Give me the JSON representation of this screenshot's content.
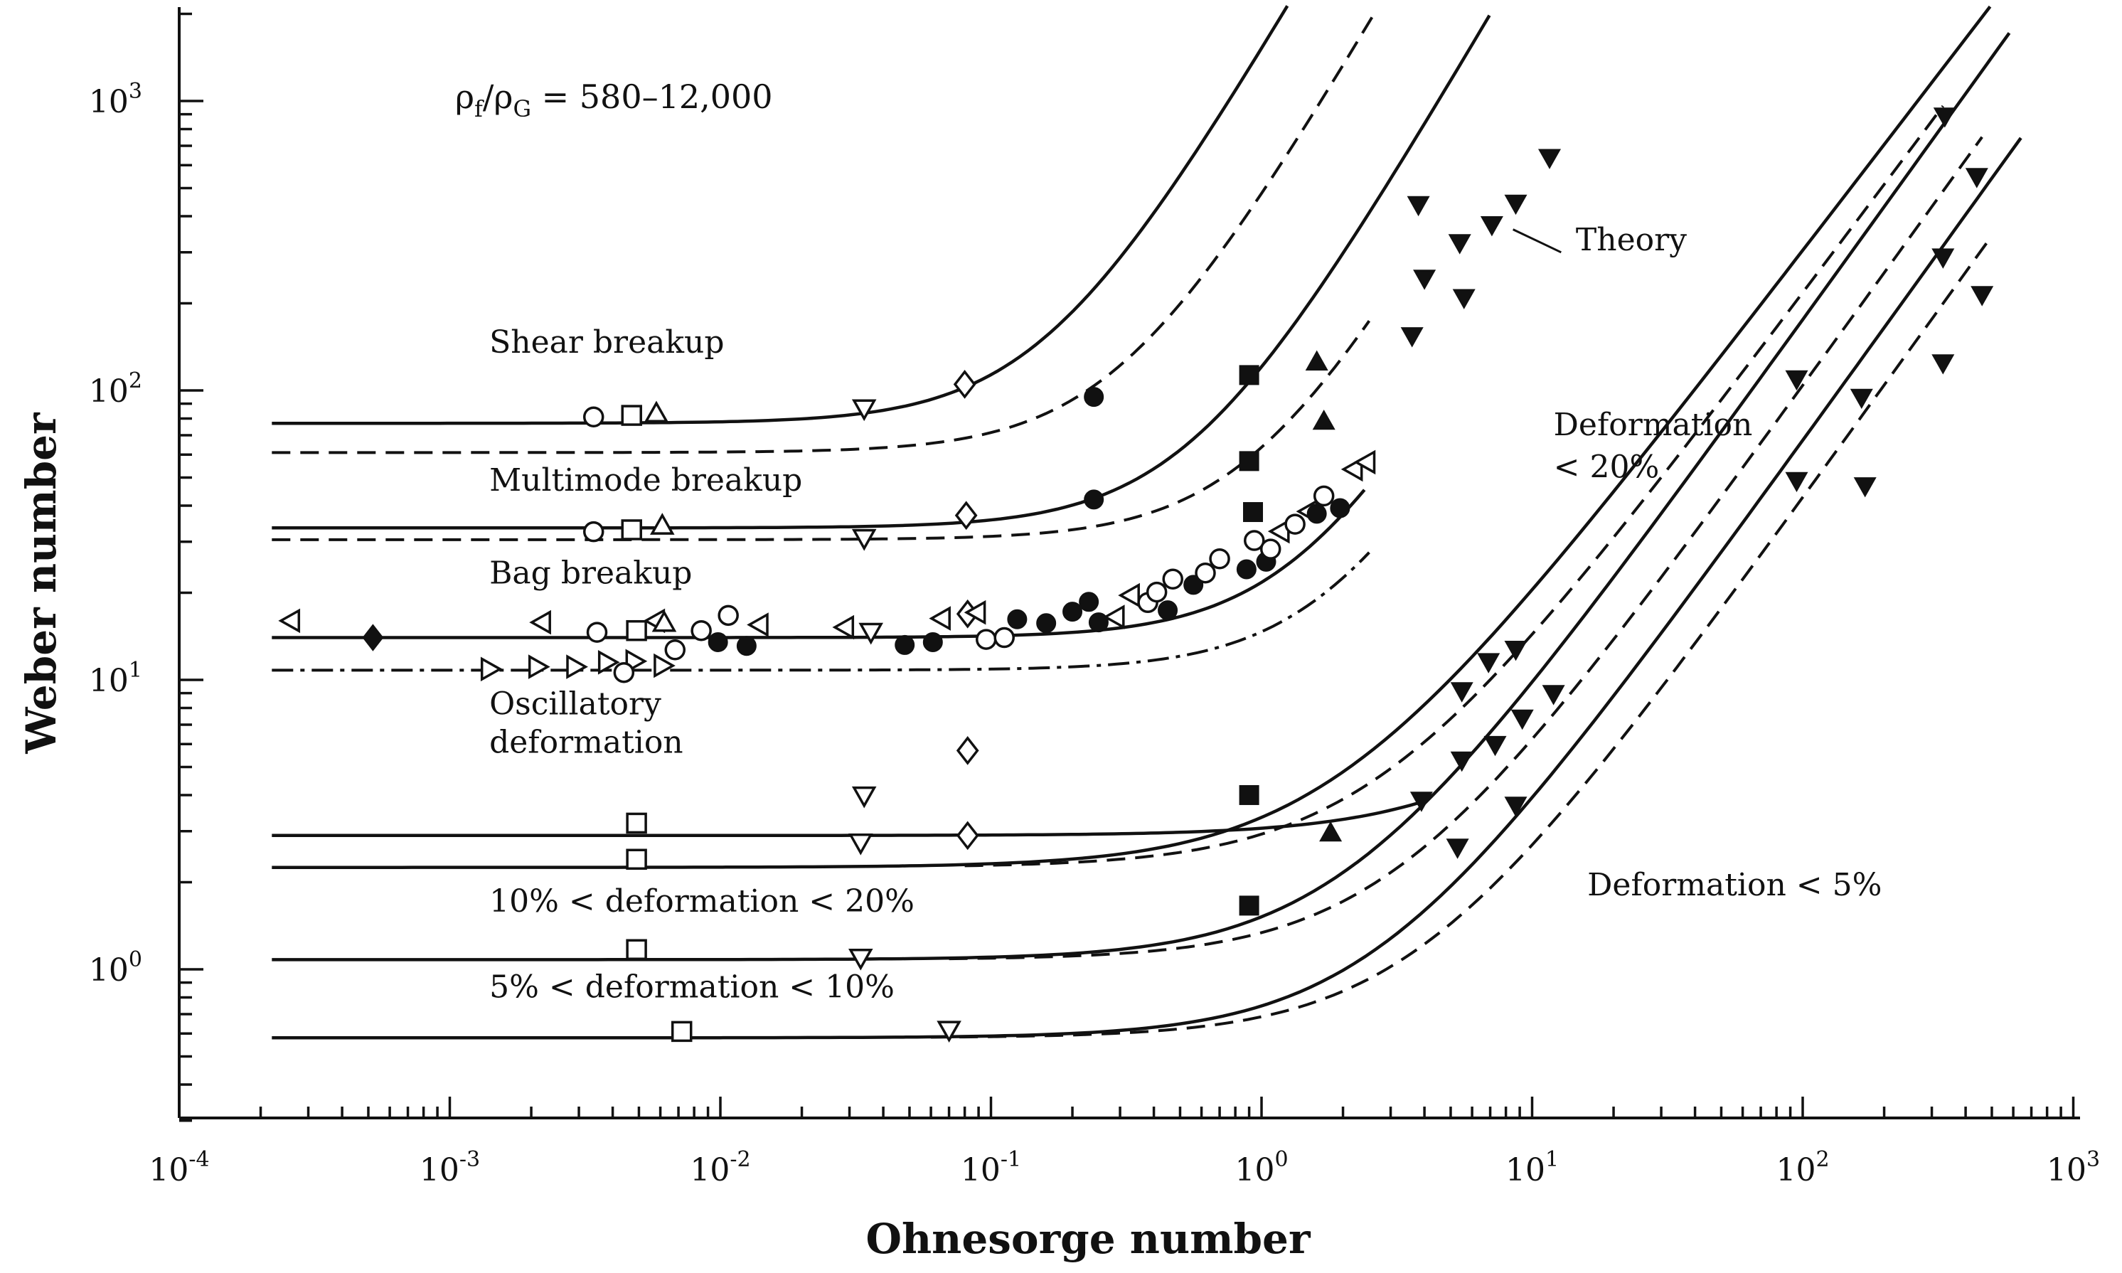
{
  "chart_data": {
    "type": "scatter",
    "title": "",
    "xlabel": "Ohnesorge number",
    "ylabel": "Weber number",
    "xscale": "log",
    "yscale": "log",
    "xlim": [
      0.0001,
      1000
    ],
    "ylim": [
      0.3,
      2000
    ],
    "x_ticks": [
      {
        "base": "10",
        "exp": "-4",
        "value": 0.0001
      },
      {
        "base": "10",
        "exp": "-3",
        "value": 0.001
      },
      {
        "base": "10",
        "exp": "-2",
        "value": 0.01
      },
      {
        "base": "10",
        "exp": "-1",
        "value": 0.1
      },
      {
        "base": "10",
        "exp": "0",
        "value": 1
      },
      {
        "base": "10",
        "exp": "1",
        "value": 10
      },
      {
        "base": "10",
        "exp": "2",
        "value": 100
      },
      {
        "base": "10",
        "exp": "3",
        "value": 1000
      }
    ],
    "y_ticks": [
      {
        "base": "10",
        "exp": "0",
        "value": 1
      },
      {
        "base": "10",
        "exp": "1",
        "value": 10
      },
      {
        "base": "10",
        "exp": "2",
        "value": 100
      },
      {
        "base": "10",
        "exp": "3",
        "value": 1000
      }
    ],
    "density_ratio": {
      "rho": "ρ",
      "sub_f": "f",
      "slash": "/",
      "sub_g": "G",
      "value": " = 580–12,000"
    },
    "region_labels": [
      {
        "id": "shear",
        "text": "Shear breakup",
        "x": 0.0014,
        "y": 135
      },
      {
        "id": "multimode",
        "text": "Multimode breakup",
        "x": 0.0014,
        "y": 45
      },
      {
        "id": "bag",
        "text": "Bag breakup",
        "x": 0.0014,
        "y": 21.5
      },
      {
        "id": "osc1",
        "text": "Oscillatory",
        "x": 0.0014,
        "y": 7.6
      },
      {
        "id": "osc2",
        "text": "deformation",
        "x": 0.0014,
        "y": 5.6
      },
      {
        "id": "def1020",
        "text": "10% < deformation < 20%",
        "x": 0.0014,
        "y": 1.58
      },
      {
        "id": "def510",
        "text": "5% < deformation < 10%",
        "x": 0.0014,
        "y": 0.8
      },
      {
        "id": "def20a",
        "text": "Deformation",
        "x": 12,
        "y": 70
      },
      {
        "id": "def20b",
        "text": "< 20%",
        "x": 12,
        "y": 50
      },
      {
        "id": "def5",
        "text": "Deformation < 5%",
        "x": 16,
        "y": 1.8
      },
      {
        "id": "theory",
        "text": "Theory",
        "x": 14.5,
        "y": 305
      }
    ],
    "theory_pointer": {
      "from": [
        8.5,
        360
      ],
      "to": [
        12.8,
        300
      ]
    },
    "series": [
      {
        "name": "shear-solid",
        "style": "solid",
        "We0": 77,
        "A": 0.16,
        "n": 1.6,
        "x_start": 0.00022,
        "x_end": 7.2
      },
      {
        "name": "shear-dashed",
        "style": "dashed",
        "We0": 61,
        "A": 0.3,
        "n": 1.6,
        "x_start": 0.00022,
        "x_end": 11.5
      },
      {
        "name": "multimode-solid",
        "style": "solid",
        "We0": 33.5,
        "A": 0.55,
        "n": 1.6,
        "x_start": 0.00022,
        "x_end": 12
      },
      {
        "name": "multimode-dashed",
        "style": "dashed",
        "We0": 30.5,
        "A": 0.95,
        "n": 1.6,
        "x_start": 0.00022,
        "x_end": 2.5
      },
      {
        "name": "bag-solid",
        "style": "solid",
        "We0": 14,
        "A": 1.45,
        "n": 1.6,
        "x_start": 0.00022,
        "x_end": 2.4
      },
      {
        "name": "bag-dashdot",
        "style": "dashdot",
        "We0": 10.8,
        "A": 1.9,
        "n": 1.6,
        "x_start": 0.00022,
        "x_end": 2.5
      },
      {
        "name": "osc-upper-solid",
        "style": "solid",
        "We0": 2.9,
        "A": 10.5,
        "n": 1.2,
        "x_start": 0.00022,
        "x_end": 4
      },
      {
        "name": "osc-lower-solid",
        "style": "solid",
        "We0": 2.25,
        "A": 1.8,
        "n": 1.22,
        "x_start": 0.00022,
        "x_end": 540
      },
      {
        "name": "osc-lower-dashed",
        "style": "dashed",
        "We0": 2.25,
        "A": 2.6,
        "n": 1.25,
        "x_start": 0.08,
        "x_end": 330
      },
      {
        "name": "def1020-solid",
        "style": "solid",
        "We0": 1.08,
        "A": 2.0,
        "n": 1.3,
        "x_start": 0.00022,
        "x_end": 580
      },
      {
        "name": "def1020-dashed",
        "style": "dashed",
        "We0": 1.08,
        "A": 3.0,
        "n": 1.3,
        "x_start": 0.07,
        "x_end": 460
      },
      {
        "name": "def510-solid",
        "style": "solid",
        "We0": 0.58,
        "A": 2.6,
        "n": 1.3,
        "x_start": 0.00022,
        "x_end": 640
      },
      {
        "name": "def510-dashed",
        "style": "dashed",
        "We0": 0.58,
        "A": 3.7,
        "n": 1.3,
        "x_start": 0.06,
        "x_end": 480
      }
    ],
    "markers": [
      {
        "s": "circle",
        "f": 0,
        "x": 0.0034,
        "y": 81
      },
      {
        "s": "square",
        "f": 0,
        "x": 0.0047,
        "y": 82
      },
      {
        "s": "triangle-up",
        "f": 0,
        "x": 0.0058,
        "y": 83
      },
      {
        "s": "triangle-down",
        "f": 0,
        "x": 0.034,
        "y": 87
      },
      {
        "s": "diamond",
        "f": 0,
        "x": 0.08,
        "y": 105
      },
      {
        "s": "circle",
        "f": 1,
        "x": 0.24,
        "y": 95
      },
      {
        "s": "square",
        "f": 1,
        "x": 0.9,
        "y": 113
      },
      {
        "s": "triangle-up",
        "f": 1,
        "x": 1.6,
        "y": 125
      },
      {
        "s": "triangle-down",
        "f": 1,
        "x": 3.6,
        "y": 155
      },
      {
        "s": "triangle-down",
        "f": 1,
        "x": 4.0,
        "y": 245
      },
      {
        "s": "triangle-down",
        "f": 1,
        "x": 3.8,
        "y": 440
      },
      {
        "s": "triangle-down",
        "f": 1,
        "x": 5.4,
        "y": 325
      },
      {
        "s": "triangle-down",
        "f": 1,
        "x": 5.6,
        "y": 210
      },
      {
        "s": "triangle-down",
        "f": 1,
        "x": 7.1,
        "y": 375
      },
      {
        "s": "triangle-down",
        "f": 1,
        "x": 8.7,
        "y": 445
      },
      {
        "s": "triangle-down",
        "f": 1,
        "x": 11.6,
        "y": 640
      },
      {
        "s": "triangle-up",
        "f": 1,
        "x": 1.7,
        "y": 78
      },
      {
        "s": "square",
        "f": 1,
        "x": 0.9,
        "y": 57
      },
      {
        "s": "circle",
        "f": 0,
        "x": 0.0034,
        "y": 32.5
      },
      {
        "s": "square",
        "f": 0,
        "x": 0.0047,
        "y": 33
      },
      {
        "s": "triangle-up",
        "f": 0,
        "x": 0.0061,
        "y": 34
      },
      {
        "s": "triangle-down",
        "f": 0,
        "x": 0.034,
        "y": 31
      },
      {
        "s": "diamond",
        "f": 0,
        "x": 0.081,
        "y": 37
      },
      {
        "s": "circle",
        "f": 1,
        "x": 0.24,
        "y": 42
      },
      {
        "s": "square",
        "f": 1,
        "x": 0.93,
        "y": 38
      },
      {
        "s": "triangle-left",
        "f": 0,
        "x": 0.00026,
        "y": 16
      },
      {
        "s": "diamond",
        "f": 1,
        "x": 0.00052,
        "y": 14
      },
      {
        "s": "triangle-left",
        "f": 0,
        "x": 0.0022,
        "y": 15.8
      },
      {
        "s": "triangle-right",
        "f": 0,
        "x": 0.0014,
        "y": 10.9
      },
      {
        "s": "triangle-right",
        "f": 0,
        "x": 0.0021,
        "y": 11.1
      },
      {
        "s": "triangle-right",
        "f": 0,
        "x": 0.0029,
        "y": 11.1
      },
      {
        "s": "triangle-right",
        "f": 0,
        "x": 0.0038,
        "y": 11.5
      },
      {
        "s": "triangle-right",
        "f": 0,
        "x": 0.0048,
        "y": 11.6
      },
      {
        "s": "triangle-right",
        "f": 0,
        "x": 0.0061,
        "y": 11.2
      },
      {
        "s": "circle",
        "f": 0,
        "x": 0.0035,
        "y": 14.6
      },
      {
        "s": "circle",
        "f": 0,
        "x": 0.0044,
        "y": 10.6
      },
      {
        "s": "square",
        "f": 0,
        "x": 0.0049,
        "y": 14.8
      },
      {
        "s": "triangle-left",
        "f": 0,
        "x": 0.0058,
        "y": 16
      },
      {
        "s": "triangle-up",
        "f": 0,
        "x": 0.0062,
        "y": 15.7
      },
      {
        "s": "circle",
        "f": 0,
        "x": 0.0068,
        "y": 12.7
      },
      {
        "s": "circle",
        "f": 0,
        "x": 0.0085,
        "y": 14.8
      },
      {
        "s": "circle",
        "f": 1,
        "x": 0.0098,
        "y": 13.5
      },
      {
        "s": "circle",
        "f": 0,
        "x": 0.0107,
        "y": 16.7
      },
      {
        "s": "circle",
        "f": 1,
        "x": 0.0125,
        "y": 13.1
      },
      {
        "s": "triangle-left",
        "f": 0,
        "x": 0.014,
        "y": 15.5
      },
      {
        "s": "triangle-left",
        "f": 0,
        "x": 0.029,
        "y": 15.2
      },
      {
        "s": "triangle-down",
        "f": 0,
        "x": 0.036,
        "y": 14.7
      },
      {
        "s": "circle",
        "f": 1,
        "x": 0.048,
        "y": 13.2
      },
      {
        "s": "circle",
        "f": 1,
        "x": 0.061,
        "y": 13.5
      },
      {
        "s": "triangle-left",
        "f": 0,
        "x": 0.066,
        "y": 16.3
      },
      {
        "s": "diamond",
        "f": 0,
        "x": 0.082,
        "y": 16.9
      },
      {
        "s": "triangle-left",
        "f": 0,
        "x": 0.089,
        "y": 17.1
      },
      {
        "s": "circle",
        "f": 0,
        "x": 0.096,
        "y": 13.8
      },
      {
        "s": "circle",
        "f": 0,
        "x": 0.112,
        "y": 14
      },
      {
        "s": "circle",
        "f": 1,
        "x": 0.125,
        "y": 16.2
      },
      {
        "s": "circle",
        "f": 1,
        "x": 0.16,
        "y": 15.7
      },
      {
        "s": "circle",
        "f": 1,
        "x": 0.2,
        "y": 17.2
      },
      {
        "s": "circle",
        "f": 1,
        "x": 0.23,
        "y": 18.6
      },
      {
        "s": "circle",
        "f": 1,
        "x": 0.25,
        "y": 15.8
      },
      {
        "s": "triangle-left",
        "f": 0,
        "x": 0.29,
        "y": 16.5
      },
      {
        "s": "triangle-left",
        "f": 0,
        "x": 0.33,
        "y": 19.6
      },
      {
        "s": "circle",
        "f": 0,
        "x": 0.38,
        "y": 18.5
      },
      {
        "s": "circle",
        "f": 0,
        "x": 0.41,
        "y": 20.1
      },
      {
        "s": "circle",
        "f": 1,
        "x": 0.45,
        "y": 17.4
      },
      {
        "s": "circle",
        "f": 0,
        "x": 0.47,
        "y": 22.3
      },
      {
        "s": "circle",
        "f": 1,
        "x": 0.56,
        "y": 21.3
      },
      {
        "s": "circle",
        "f": 0,
        "x": 0.62,
        "y": 23.4
      },
      {
        "s": "circle",
        "f": 0,
        "x": 0.7,
        "y": 26.2
      },
      {
        "s": "circle",
        "f": 1,
        "x": 0.88,
        "y": 24.1
      },
      {
        "s": "circle",
        "f": 0,
        "x": 0.94,
        "y": 30.3
      },
      {
        "s": "circle",
        "f": 1,
        "x": 1.04,
        "y": 25.6
      },
      {
        "s": "circle",
        "f": 0,
        "x": 1.08,
        "y": 28.3
      },
      {
        "s": "triangle-left",
        "f": 0,
        "x": 1.18,
        "y": 32.6
      },
      {
        "s": "circle",
        "f": 0,
        "x": 1.33,
        "y": 34.5
      },
      {
        "s": "triangle-left",
        "f": 0,
        "x": 1.5,
        "y": 38.2
      },
      {
        "s": "circle",
        "f": 1,
        "x": 1.6,
        "y": 37.5
      },
      {
        "s": "circle",
        "f": 0,
        "x": 1.7,
        "y": 43.2
      },
      {
        "s": "circle",
        "f": 1,
        "x": 1.95,
        "y": 39.2
      },
      {
        "s": "triangle-left",
        "f": 0,
        "x": 2.2,
        "y": 53.4
      },
      {
        "s": "triangle-left",
        "f": 0,
        "x": 2.45,
        "y": 56.5
      },
      {
        "s": "triangle-down",
        "f": 0,
        "x": 0.034,
        "y": 4.0
      },
      {
        "s": "diamond",
        "f": 0,
        "x": 0.082,
        "y": 5.7
      },
      {
        "s": "square",
        "f": 0,
        "x": 0.0049,
        "y": 3.2
      },
      {
        "s": "square",
        "f": 0,
        "x": 0.0049,
        "y": 2.4
      },
      {
        "s": "triangle-down",
        "f": 0,
        "x": 0.033,
        "y": 2.75
      },
      {
        "s": "diamond",
        "f": 0,
        "x": 0.082,
        "y": 2.9
      },
      {
        "s": "square",
        "f": 1,
        "x": 0.9,
        "y": 4.0
      },
      {
        "s": "triangle-down",
        "f": 1,
        "x": 5.5,
        "y": 9.2
      },
      {
        "s": "triangle-down",
        "f": 1,
        "x": 6.9,
        "y": 11.6
      },
      {
        "s": "triangle-down",
        "f": 1,
        "x": 8.7,
        "y": 12.8
      },
      {
        "s": "triangle-down",
        "f": 1,
        "x": 95,
        "y": 110
      },
      {
        "s": "triangle-down",
        "f": 1,
        "x": 335,
        "y": 890
      },
      {
        "s": "triangle-down",
        "f": 1,
        "x": 330,
        "y": 290
      },
      {
        "s": "triangle-down",
        "f": 1,
        "x": 440,
        "y": 550
      },
      {
        "s": "triangle-down",
        "f": 1,
        "x": 165,
        "y": 95
      },
      {
        "s": "square",
        "f": 0,
        "x": 0.0049,
        "y": 1.17
      },
      {
        "s": "triangle-down",
        "f": 0,
        "x": 0.033,
        "y": 1.1
      },
      {
        "s": "square",
        "f": 1,
        "x": 0.9,
        "y": 1.66
      },
      {
        "s": "triangle-up",
        "f": 1,
        "x": 1.8,
        "y": 2.95
      },
      {
        "s": "triangle-down",
        "f": 1,
        "x": 3.9,
        "y": 3.85
      },
      {
        "s": "triangle-down",
        "f": 1,
        "x": 5.5,
        "y": 5.3
      },
      {
        "s": "triangle-down",
        "f": 1,
        "x": 7.3,
        "y": 6.0
      },
      {
        "s": "triangle-down",
        "f": 1,
        "x": 9.2,
        "y": 7.4
      },
      {
        "s": "triangle-down",
        "f": 1,
        "x": 12,
        "y": 9.0
      },
      {
        "s": "triangle-down",
        "f": 1,
        "x": 95,
        "y": 49
      },
      {
        "s": "triangle-down",
        "f": 1,
        "x": 330,
        "y": 125
      },
      {
        "s": "triangle-down",
        "f": 1,
        "x": 460,
        "y": 215
      },
      {
        "s": "square",
        "f": 0,
        "x": 0.0072,
        "y": 0.61
      },
      {
        "s": "triangle-down",
        "f": 0,
        "x": 0.07,
        "y": 0.62
      },
      {
        "s": "triangle-down",
        "f": 1,
        "x": 5.3,
        "y": 2.65
      },
      {
        "s": "triangle-down",
        "f": 1,
        "x": 8.7,
        "y": 3.7
      },
      {
        "s": "triangle-down",
        "f": 1,
        "x": 170,
        "y": 47
      }
    ]
  }
}
